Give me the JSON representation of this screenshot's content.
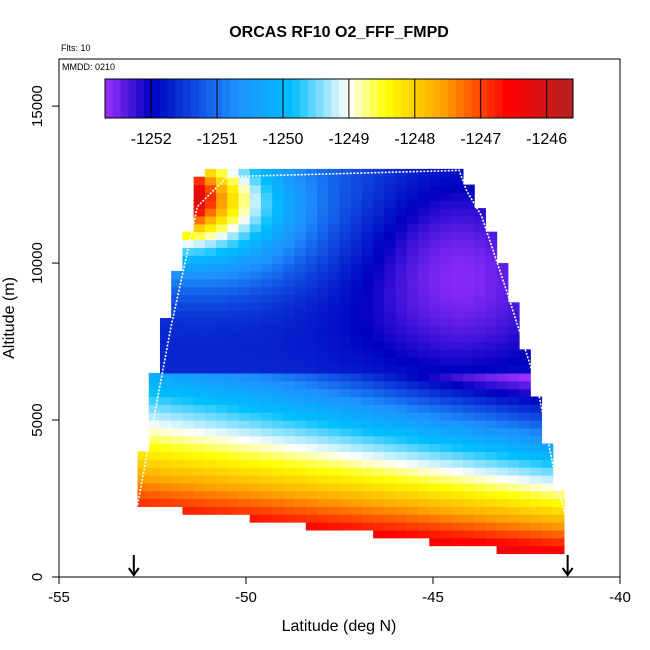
{
  "chart_data": {
    "type": "heatmap",
    "title": "ORCAS RF10 O2_FFF_FMPD",
    "annotations": {
      "flts": "Flts: 10",
      "mmdd": "MMDD: 0210"
    },
    "xlabel": "Latitude (deg N)",
    "ylabel": "Altitude (m)",
    "xlim": [
      -55,
      -40
    ],
    "ylim": [
      0,
      16500
    ],
    "x_ticks": [
      -55,
      -50,
      -45,
      -40
    ],
    "x_tick_labels": [
      "-55",
      "-50",
      "-45",
      "-40"
    ],
    "y_ticks": [
      0,
      5000,
      10000,
      15000
    ],
    "y_tick_labels": [
      "0",
      "5000",
      "10000",
      "15000"
    ],
    "colorbar": {
      "range": [
        -1252.7,
        -1245.6
      ],
      "ticks": [
        -1252,
        -1251,
        -1250,
        -1249,
        -1248,
        -1247,
        -1246
      ],
      "tick_labels": [
        "-1252",
        "-1251",
        "-1250",
        "-1249",
        "-1248",
        "-1247",
        "-1246"
      ],
      "colors": [
        "#9b30ff",
        "#0000c0",
        "#1e90ff",
        "#00bfff",
        "#ffffff",
        "#ffff00",
        "#ffa500",
        "#ff0000",
        "#b22222"
      ]
    },
    "field": {
      "lat_range": [
        -52.9,
        -41.4
      ],
      "bottom_alt_west": 2300,
      "bottom_alt_east": 600,
      "top_alt": 12800,
      "west_edge": [
        [
          -52.9,
          2300
        ],
        [
          -52.8,
          3500
        ],
        [
          -52.6,
          5500
        ],
        [
          -52.3,
          7500
        ],
        [
          -51.9,
          9500
        ],
        [
          -51.5,
          11200
        ],
        [
          -51.3,
          12500
        ],
        [
          -51.2,
          12800
        ]
      ],
      "east_edge": [
        [
          -41.4,
          600
        ],
        [
          -41.5,
          2000
        ],
        [
          -41.9,
          4000
        ],
        [
          -42.3,
          6000
        ],
        [
          -42.8,
          8500
        ],
        [
          -43.3,
          10500
        ],
        [
          -43.9,
          12200
        ],
        [
          -44.2,
          12800
        ]
      ]
    },
    "flight_track": [
      [
        -52.9,
        2300
      ],
      [
        -52.0,
        8000
      ],
      [
        -51.3,
        11800
      ],
      [
        -50.5,
        12750
      ],
      [
        -44.3,
        12950
      ],
      [
        -44.1,
        12300
      ],
      [
        -43.7,
        11500
      ],
      [
        -43.0,
        9000
      ],
      [
        -42.2,
        6000
      ],
      [
        -41.7,
        3000
      ],
      [
        -41.4,
        1700
      ]
    ],
    "markers": [
      {
        "lat": -53.0,
        "label": "arrow"
      },
      {
        "lat": -41.4,
        "label": "arrow"
      }
    ]
  }
}
